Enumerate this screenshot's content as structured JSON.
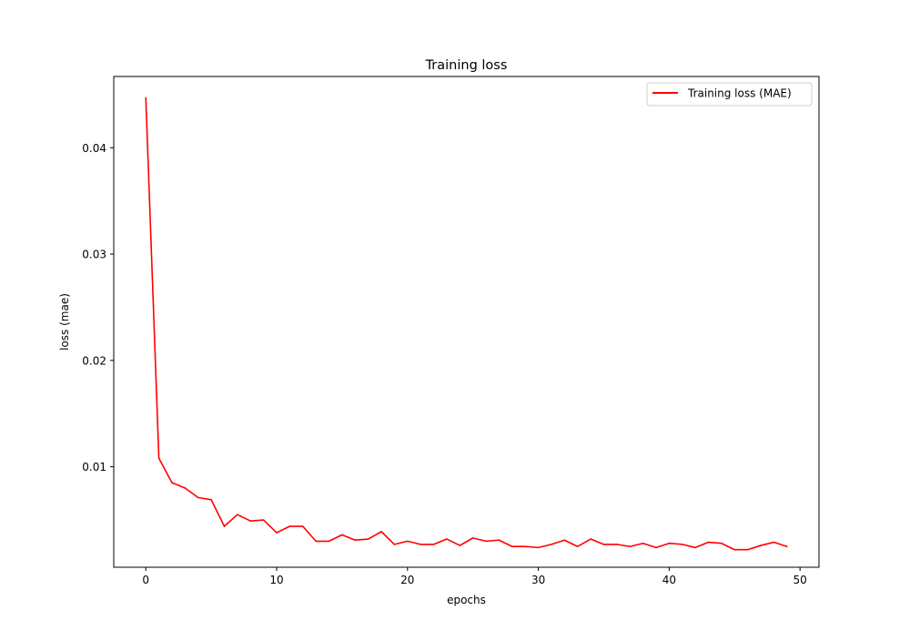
{
  "chart_data": {
    "type": "line",
    "title": "Training loss",
    "xlabel": "epochs",
    "ylabel": "loss (mae)",
    "xlim": [
      -2.45,
      51.45
    ],
    "ylim": [
      0.00055,
      0.0467
    ],
    "xticks": [
      0,
      10,
      20,
      30,
      40,
      50
    ],
    "yticks": [
      0.01,
      0.02,
      0.03,
      0.04
    ],
    "xtick_labels": [
      "0",
      "10",
      "20",
      "30",
      "40",
      "50"
    ],
    "ytick_labels": [
      "0.01",
      "0.02",
      "0.03",
      "0.04"
    ],
    "grid": false,
    "legend_position": "top-right",
    "series": [
      {
        "name": "Training loss (MAE)",
        "color": "#ff0000",
        "x": [
          0,
          1,
          2,
          3,
          4,
          5,
          6,
          7,
          8,
          9,
          10,
          11,
          12,
          13,
          14,
          15,
          16,
          17,
          18,
          19,
          20,
          21,
          22,
          23,
          24,
          25,
          26,
          27,
          28,
          29,
          30,
          31,
          32,
          33,
          34,
          35,
          36,
          37,
          38,
          39,
          40,
          41,
          42,
          43,
          44,
          45,
          46,
          47,
          48,
          49
        ],
        "y": [
          0.0447,
          0.0108,
          0.0085,
          0.008,
          0.0071,
          0.0069,
          0.0044,
          0.0055,
          0.0049,
          0.005,
          0.0038,
          0.0044,
          0.0044,
          0.003,
          0.003,
          0.0036,
          0.0031,
          0.0032,
          0.0039,
          0.0027,
          0.003,
          0.0027,
          0.0027,
          0.0032,
          0.0026,
          0.0033,
          0.003,
          0.0031,
          0.0025,
          0.0025,
          0.0024,
          0.0027,
          0.0031,
          0.0025,
          0.0032,
          0.0027,
          0.0027,
          0.0025,
          0.0028,
          0.0024,
          0.0028,
          0.0027,
          0.0024,
          0.0029,
          0.0028,
          0.0022,
          0.0022,
          0.0026,
          0.0029,
          0.0025
        ]
      }
    ]
  }
}
